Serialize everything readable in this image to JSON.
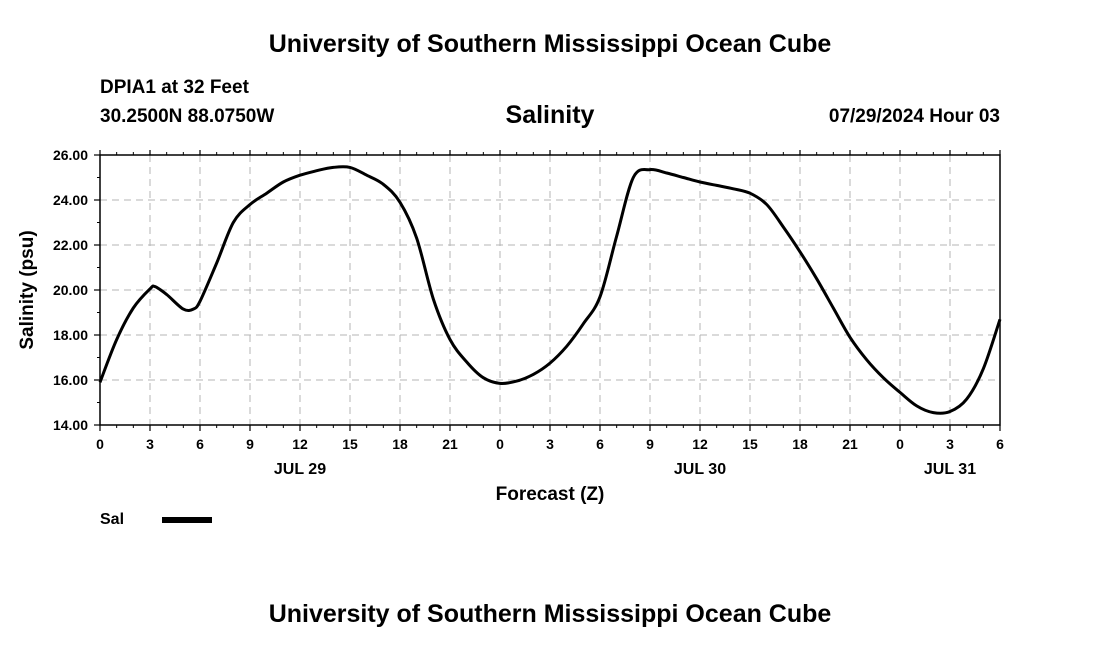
{
  "header": {
    "title": "University of Southern Mississippi Ocean Cube",
    "station": "DPIA1 at 32 Feet",
    "coordinates": "30.2500N  88.0750W",
    "timestamp": "07/29/2024 Hour 03"
  },
  "footer": {
    "title": "University of Southern Mississippi Ocean Cube"
  },
  "legend": {
    "label": "Sal"
  },
  "chart_data": {
    "type": "line",
    "title": "Salinity",
    "xlabel": "Forecast (Z)",
    "ylabel": "Salinity (psu)",
    "ylim": [
      14,
      26
    ],
    "xlim": [
      0,
      54
    ],
    "x_unit": "hours",
    "yticks": [
      "14.00",
      "16.00",
      "18.00",
      "20.00",
      "22.00",
      "24.00",
      "26.00"
    ],
    "xticks": [
      "0",
      "3",
      "6",
      "9",
      "12",
      "15",
      "18",
      "21",
      "0",
      "3",
      "6",
      "9",
      "12",
      "15",
      "18",
      "21",
      "0",
      "3",
      "6"
    ],
    "date_labels": [
      {
        "label": "JUL 29",
        "x": 12
      },
      {
        "label": "JUL 30",
        "x": 36
      },
      {
        "label": "JUL 31",
        "x": 51
      }
    ],
    "grid": true,
    "line_color": "#000000",
    "series": [
      {
        "name": "Sal",
        "x": [
          0,
          1,
          2,
          3,
          3.3,
          4,
          5,
          5.6,
          6,
          7,
          8,
          9,
          10,
          11,
          12,
          13,
          14,
          15,
          16,
          17,
          18,
          19,
          20,
          21,
          22,
          23,
          24,
          25,
          26,
          27,
          28,
          29,
          30,
          31,
          32,
          33,
          34,
          35,
          36,
          37,
          38,
          39,
          40,
          41,
          42,
          43,
          44,
          45,
          46,
          47,
          48,
          49,
          50,
          51,
          52,
          53,
          54
        ],
        "values": [
          15.9,
          17.8,
          19.2,
          20.05,
          20.15,
          19.8,
          19.15,
          19.15,
          19.5,
          21.2,
          23.0,
          23.8,
          24.3,
          24.8,
          25.1,
          25.3,
          25.45,
          25.45,
          25.1,
          24.7,
          23.9,
          22.3,
          19.6,
          17.8,
          16.8,
          16.1,
          15.85,
          15.95,
          16.25,
          16.75,
          17.5,
          18.5,
          19.7,
          22.4,
          25.0,
          25.35,
          25.2,
          25.0,
          24.8,
          24.65,
          24.5,
          24.3,
          23.8,
          22.8,
          21.7,
          20.5,
          19.2,
          17.9,
          16.9,
          16.1,
          15.45,
          14.85,
          14.55,
          14.6,
          15.15,
          16.5,
          18.7
        ]
      }
    ]
  }
}
